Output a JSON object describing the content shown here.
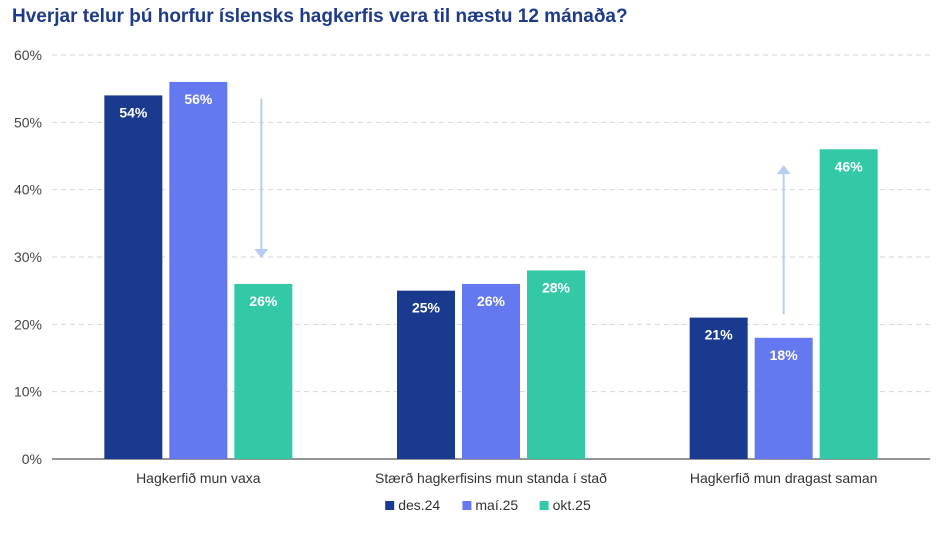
{
  "chart_data": {
    "type": "bar",
    "title": "Hverjar telur þú horfur íslensks hagkerfis vera til næstu 12 mánaða?",
    "categories": [
      "Hagkerfið mun vaxa",
      "Stærð hagkerfisins mun standa í stað",
      "Hagkerfið mun dragast saman"
    ],
    "series": [
      {
        "name": "des.24",
        "color": "#1a3a8f",
        "values": [
          54,
          25,
          21
        ],
        "labels": [
          "54%",
          "25%",
          "21%"
        ]
      },
      {
        "name": "maí.25",
        "color": "#6479f0",
        "values": [
          56,
          26,
          18
        ],
        "labels": [
          "56%",
          "26%",
          "18%"
        ]
      },
      {
        "name": "okt.25",
        "color": "#33c9a7",
        "values": [
          26,
          28,
          46
        ],
        "labels": [
          "26%",
          "28%",
          "46%"
        ]
      }
    ],
    "ylim": [
      0,
      60
    ],
    "yticks": [
      0,
      10,
      20,
      30,
      40,
      50,
      60
    ],
    "ytick_labels": [
      "0%",
      "10%",
      "20%",
      "30%",
      "40%",
      "50%",
      "60%"
    ],
    "xlabel": "",
    "ylabel": "",
    "grid": true,
    "legend": "bottom",
    "annotations": [
      {
        "type": "arrow",
        "direction": "down",
        "category": 0,
        "from": 53.5,
        "to": 30,
        "color": "#b8cdf2"
      },
      {
        "type": "arrow",
        "direction": "up",
        "category": 2,
        "from": 21.5,
        "to": 43.5,
        "color": "#b8cdf2"
      }
    ]
  }
}
